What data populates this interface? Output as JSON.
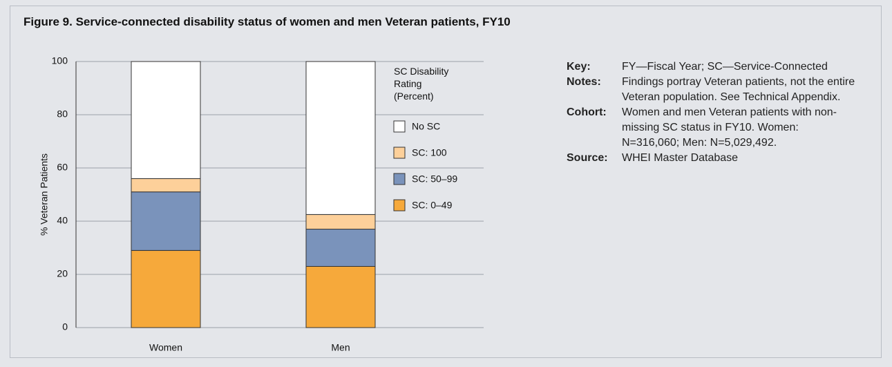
{
  "chart_data": {
    "type": "stacked_bar",
    "title": "Figure 9. Service-connected disability status of women and men Veteran patients, FY10",
    "ylabel": "% Veteran Patients",
    "categories": [
      "Women",
      "Men"
    ],
    "series": [
      {
        "name": "SC: 0–49",
        "color": "#f6a93b",
        "values": [
          29,
          23
        ]
      },
      {
        "name": "SC: 50–99",
        "color": "#7a93bb",
        "values": [
          22,
          14
        ]
      },
      {
        "name": "SC: 100",
        "color": "#fdd09a",
        "values": [
          5,
          5.5
        ]
      },
      {
        "name": "No SC",
        "color": "#ffffff",
        "values": [
          44,
          57.5
        ]
      }
    ],
    "legend_title": "SC Disability Rating (Percent)",
    "ylim": [
      0,
      100
    ],
    "yticks": [
      0,
      20,
      40,
      60,
      80,
      100
    ],
    "grid": true
  },
  "notes": [
    {
      "label": "Key:",
      "text": "FY—Fiscal Year; SC—Service-Connected"
    },
    {
      "label": "Notes:",
      "text": "Findings portray Veteran patients, not the entire Veteran population. See Technical Appendix."
    },
    {
      "label": "Cohort:",
      "text": "Women and men Veteran patients with non-missing SC status in FY10. Women: N=316,060; Men: N=5,029,492."
    },
    {
      "label": "Source:",
      "text": "WHEI Master Database"
    }
  ]
}
